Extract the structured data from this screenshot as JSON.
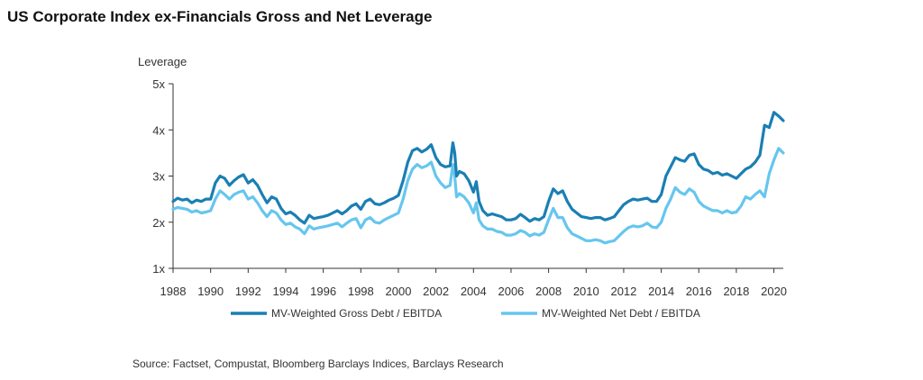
{
  "title": "US Corporate Index ex-Financials Gross and Net Leverage",
  "source": "Source: Factset, Compustat, Bloomberg Barclays Indices, Barclays Research",
  "colors": {
    "gross": "#1a7fb3",
    "net": "#66c6ee",
    "axis": "#333333"
  },
  "chart_data": {
    "type": "line",
    "title": "US Corporate Index ex-Financials Gross and Net Leverage",
    "ylabel": "Leverage",
    "xlabel": "",
    "xlim": [
      1988,
      2020.5
    ],
    "ylim": [
      1,
      5
    ],
    "x_ticks": [
      1988,
      1990,
      1992,
      1994,
      1996,
      1998,
      2000,
      2002,
      2004,
      2006,
      2008,
      2010,
      2012,
      2014,
      2016,
      2018,
      2020
    ],
    "x_tick_labels": [
      "1988",
      "1990",
      "1992",
      "1994",
      "1996",
      "1998",
      "2000",
      "2002",
      "2004",
      "2006",
      "2008",
      "2010",
      "2012",
      "2014",
      "2016",
      "2018",
      "2020"
    ],
    "y_ticks": [
      1,
      2,
      3,
      4,
      5
    ],
    "y_tick_labels": [
      "1x",
      "2x",
      "3x",
      "4x",
      "5x"
    ],
    "grid": false,
    "legend_position": "bottom",
    "series": [
      {
        "name": "MV-Weighted Gross Debt / EBITDA",
        "points": [
          [
            1988.0,
            2.45
          ],
          [
            1988.25,
            2.52
          ],
          [
            1988.5,
            2.48
          ],
          [
            1988.75,
            2.5
          ],
          [
            1989.0,
            2.42
          ],
          [
            1989.25,
            2.48
          ],
          [
            1989.5,
            2.45
          ],
          [
            1989.75,
            2.5
          ],
          [
            1990.0,
            2.5
          ],
          [
            1990.25,
            2.85
          ],
          [
            1990.5,
            3.0
          ],
          [
            1990.75,
            2.95
          ],
          [
            1991.0,
            2.8
          ],
          [
            1991.25,
            2.9
          ],
          [
            1991.5,
            2.98
          ],
          [
            1991.75,
            3.03
          ],
          [
            1992.0,
            2.85
          ],
          [
            1992.25,
            2.92
          ],
          [
            1992.5,
            2.8
          ],
          [
            1992.75,
            2.6
          ],
          [
            1993.0,
            2.42
          ],
          [
            1993.25,
            2.55
          ],
          [
            1993.5,
            2.5
          ],
          [
            1993.75,
            2.3
          ],
          [
            1994.0,
            2.18
          ],
          [
            1994.25,
            2.22
          ],
          [
            1994.5,
            2.15
          ],
          [
            1994.75,
            2.05
          ],
          [
            1995.0,
            1.98
          ],
          [
            1995.25,
            2.15
          ],
          [
            1995.5,
            2.08
          ],
          [
            1995.75,
            2.1
          ],
          [
            1996.0,
            2.12
          ],
          [
            1996.25,
            2.15
          ],
          [
            1996.5,
            2.2
          ],
          [
            1996.75,
            2.25
          ],
          [
            1997.0,
            2.18
          ],
          [
            1997.25,
            2.25
          ],
          [
            1997.5,
            2.35
          ],
          [
            1997.75,
            2.4
          ],
          [
            1998.0,
            2.28
          ],
          [
            1998.25,
            2.45
          ],
          [
            1998.5,
            2.5
          ],
          [
            1998.75,
            2.4
          ],
          [
            1999.0,
            2.38
          ],
          [
            1999.25,
            2.42
          ],
          [
            1999.5,
            2.48
          ],
          [
            1999.75,
            2.52
          ],
          [
            2000.0,
            2.58
          ],
          [
            2000.25,
            2.9
          ],
          [
            2000.5,
            3.3
          ],
          [
            2000.75,
            3.55
          ],
          [
            2001.0,
            3.6
          ],
          [
            2001.25,
            3.52
          ],
          [
            2001.5,
            3.58
          ],
          [
            2001.75,
            3.68
          ],
          [
            2002.0,
            3.4
          ],
          [
            2002.25,
            3.25
          ],
          [
            2002.5,
            3.2
          ],
          [
            2002.75,
            3.22
          ],
          [
            2002.9,
            3.72
          ],
          [
            2003.0,
            3.5
          ],
          [
            2003.1,
            3.0
          ],
          [
            2003.25,
            3.1
          ],
          [
            2003.5,
            3.05
          ],
          [
            2003.75,
            2.9
          ],
          [
            2004.0,
            2.65
          ],
          [
            2004.15,
            2.88
          ],
          [
            2004.3,
            2.45
          ],
          [
            2004.5,
            2.25
          ],
          [
            2004.75,
            2.15
          ],
          [
            2005.0,
            2.18
          ],
          [
            2005.25,
            2.15
          ],
          [
            2005.5,
            2.12
          ],
          [
            2005.75,
            2.05
          ],
          [
            2006.0,
            2.05
          ],
          [
            2006.25,
            2.08
          ],
          [
            2006.5,
            2.17
          ],
          [
            2006.75,
            2.1
          ],
          [
            2007.0,
            2.02
          ],
          [
            2007.25,
            2.08
          ],
          [
            2007.5,
            2.05
          ],
          [
            2007.75,
            2.12
          ],
          [
            2008.0,
            2.45
          ],
          [
            2008.25,
            2.72
          ],
          [
            2008.5,
            2.62
          ],
          [
            2008.75,
            2.68
          ],
          [
            2009.0,
            2.45
          ],
          [
            2009.25,
            2.28
          ],
          [
            2009.5,
            2.2
          ],
          [
            2009.75,
            2.12
          ],
          [
            2010.0,
            2.1
          ],
          [
            2010.25,
            2.08
          ],
          [
            2010.5,
            2.1
          ],
          [
            2010.75,
            2.1
          ],
          [
            2011.0,
            2.05
          ],
          [
            2011.25,
            2.08
          ],
          [
            2011.5,
            2.12
          ],
          [
            2011.75,
            2.25
          ],
          [
            2012.0,
            2.38
          ],
          [
            2012.25,
            2.45
          ],
          [
            2012.5,
            2.5
          ],
          [
            2012.75,
            2.48
          ],
          [
            2013.0,
            2.5
          ],
          [
            2013.25,
            2.52
          ],
          [
            2013.5,
            2.45
          ],
          [
            2013.75,
            2.45
          ],
          [
            2014.0,
            2.6
          ],
          [
            2014.25,
            3.0
          ],
          [
            2014.5,
            3.2
          ],
          [
            2014.75,
            3.4
          ],
          [
            2015.0,
            3.35
          ],
          [
            2015.25,
            3.32
          ],
          [
            2015.5,
            3.45
          ],
          [
            2015.75,
            3.48
          ],
          [
            2016.0,
            3.25
          ],
          [
            2016.25,
            3.15
          ],
          [
            2016.5,
            3.12
          ],
          [
            2016.75,
            3.05
          ],
          [
            2017.0,
            3.08
          ],
          [
            2017.25,
            3.02
          ],
          [
            2017.5,
            3.05
          ],
          [
            2017.75,
            3.0
          ],
          [
            2018.0,
            2.95
          ],
          [
            2018.25,
            3.05
          ],
          [
            2018.5,
            3.15
          ],
          [
            2018.75,
            3.2
          ],
          [
            2019.0,
            3.3
          ],
          [
            2019.25,
            3.45
          ],
          [
            2019.5,
            4.1
          ],
          [
            2019.75,
            4.05
          ],
          [
            2020.0,
            4.38
          ],
          [
            2020.25,
            4.3
          ],
          [
            2020.5,
            4.2
          ]
        ]
      },
      {
        "name": "MV-Weighted Net Debt / EBITDA",
        "points": [
          [
            1988.0,
            2.28
          ],
          [
            1988.25,
            2.32
          ],
          [
            1988.5,
            2.3
          ],
          [
            1988.75,
            2.28
          ],
          [
            1989.0,
            2.22
          ],
          [
            1989.25,
            2.25
          ],
          [
            1989.5,
            2.2
          ],
          [
            1989.75,
            2.22
          ],
          [
            1990.0,
            2.25
          ],
          [
            1990.25,
            2.5
          ],
          [
            1990.5,
            2.68
          ],
          [
            1990.75,
            2.6
          ],
          [
            1991.0,
            2.5
          ],
          [
            1991.25,
            2.6
          ],
          [
            1991.5,
            2.65
          ],
          [
            1991.75,
            2.68
          ],
          [
            1992.0,
            2.5
          ],
          [
            1992.25,
            2.55
          ],
          [
            1992.5,
            2.42
          ],
          [
            1992.75,
            2.25
          ],
          [
            1993.0,
            2.12
          ],
          [
            1993.25,
            2.25
          ],
          [
            1993.5,
            2.2
          ],
          [
            1993.75,
            2.05
          ],
          [
            1994.0,
            1.95
          ],
          [
            1994.25,
            1.98
          ],
          [
            1994.5,
            1.9
          ],
          [
            1994.75,
            1.85
          ],
          [
            1995.0,
            1.75
          ],
          [
            1995.25,
            1.92
          ],
          [
            1995.5,
            1.85
          ],
          [
            1995.75,
            1.88
          ],
          [
            1996.0,
            1.9
          ],
          [
            1996.25,
            1.92
          ],
          [
            1996.5,
            1.95
          ],
          [
            1996.75,
            1.98
          ],
          [
            1997.0,
            1.9
          ],
          [
            1997.25,
            1.98
          ],
          [
            1997.5,
            2.05
          ],
          [
            1997.75,
            2.08
          ],
          [
            1998.0,
            1.88
          ],
          [
            1998.25,
            2.05
          ],
          [
            1998.5,
            2.1
          ],
          [
            1998.75,
            2.0
          ],
          [
            1999.0,
            1.98
          ],
          [
            1999.25,
            2.05
          ],
          [
            1999.5,
            2.1
          ],
          [
            1999.75,
            2.15
          ],
          [
            2000.0,
            2.2
          ],
          [
            2000.25,
            2.5
          ],
          [
            2000.5,
            2.9
          ],
          [
            2000.75,
            3.15
          ],
          [
            2001.0,
            3.25
          ],
          [
            2001.25,
            3.18
          ],
          [
            2001.5,
            3.22
          ],
          [
            2001.75,
            3.3
          ],
          [
            2002.0,
            3.0
          ],
          [
            2002.25,
            2.85
          ],
          [
            2002.5,
            2.75
          ],
          [
            2002.75,
            2.8
          ],
          [
            2002.9,
            3.25
          ],
          [
            2003.0,
            3.0
          ],
          [
            2003.1,
            2.55
          ],
          [
            2003.25,
            2.62
          ],
          [
            2003.5,
            2.55
          ],
          [
            2003.75,
            2.42
          ],
          [
            2004.0,
            2.2
          ],
          [
            2004.15,
            2.42
          ],
          [
            2004.3,
            2.05
          ],
          [
            2004.5,
            1.92
          ],
          [
            2004.75,
            1.85
          ],
          [
            2005.0,
            1.85
          ],
          [
            2005.25,
            1.8
          ],
          [
            2005.5,
            1.78
          ],
          [
            2005.75,
            1.72
          ],
          [
            2006.0,
            1.72
          ],
          [
            2006.25,
            1.75
          ],
          [
            2006.5,
            1.82
          ],
          [
            2006.75,
            1.78
          ],
          [
            2007.0,
            1.7
          ],
          [
            2007.25,
            1.75
          ],
          [
            2007.5,
            1.72
          ],
          [
            2007.75,
            1.78
          ],
          [
            2008.0,
            2.05
          ],
          [
            2008.25,
            2.3
          ],
          [
            2008.5,
            2.1
          ],
          [
            2008.75,
            2.1
          ],
          [
            2009.0,
            1.88
          ],
          [
            2009.25,
            1.75
          ],
          [
            2009.5,
            1.7
          ],
          [
            2009.75,
            1.65
          ],
          [
            2010.0,
            1.6
          ],
          [
            2010.25,
            1.6
          ],
          [
            2010.5,
            1.62
          ],
          [
            2010.75,
            1.6
          ],
          [
            2011.0,
            1.55
          ],
          [
            2011.25,
            1.58
          ],
          [
            2011.5,
            1.6
          ],
          [
            2011.75,
            1.7
          ],
          [
            2012.0,
            1.8
          ],
          [
            2012.25,
            1.88
          ],
          [
            2012.5,
            1.92
          ],
          [
            2012.75,
            1.9
          ],
          [
            2013.0,
            1.92
          ],
          [
            2013.25,
            1.98
          ],
          [
            2013.5,
            1.9
          ],
          [
            2013.75,
            1.88
          ],
          [
            2014.0,
            2.0
          ],
          [
            2014.25,
            2.3
          ],
          [
            2014.5,
            2.5
          ],
          [
            2014.75,
            2.75
          ],
          [
            2015.0,
            2.65
          ],
          [
            2015.25,
            2.6
          ],
          [
            2015.5,
            2.72
          ],
          [
            2015.75,
            2.65
          ],
          [
            2016.0,
            2.45
          ],
          [
            2016.25,
            2.35
          ],
          [
            2016.5,
            2.3
          ],
          [
            2016.75,
            2.25
          ],
          [
            2017.0,
            2.25
          ],
          [
            2017.25,
            2.2
          ],
          [
            2017.5,
            2.25
          ],
          [
            2017.75,
            2.2
          ],
          [
            2018.0,
            2.22
          ],
          [
            2018.25,
            2.35
          ],
          [
            2018.5,
            2.55
          ],
          [
            2018.75,
            2.5
          ],
          [
            2019.0,
            2.6
          ],
          [
            2019.25,
            2.68
          ],
          [
            2019.5,
            2.55
          ],
          [
            2019.75,
            3.05
          ],
          [
            2020.0,
            3.35
          ],
          [
            2020.25,
            3.6
          ],
          [
            2020.5,
            3.5
          ]
        ]
      }
    ]
  }
}
